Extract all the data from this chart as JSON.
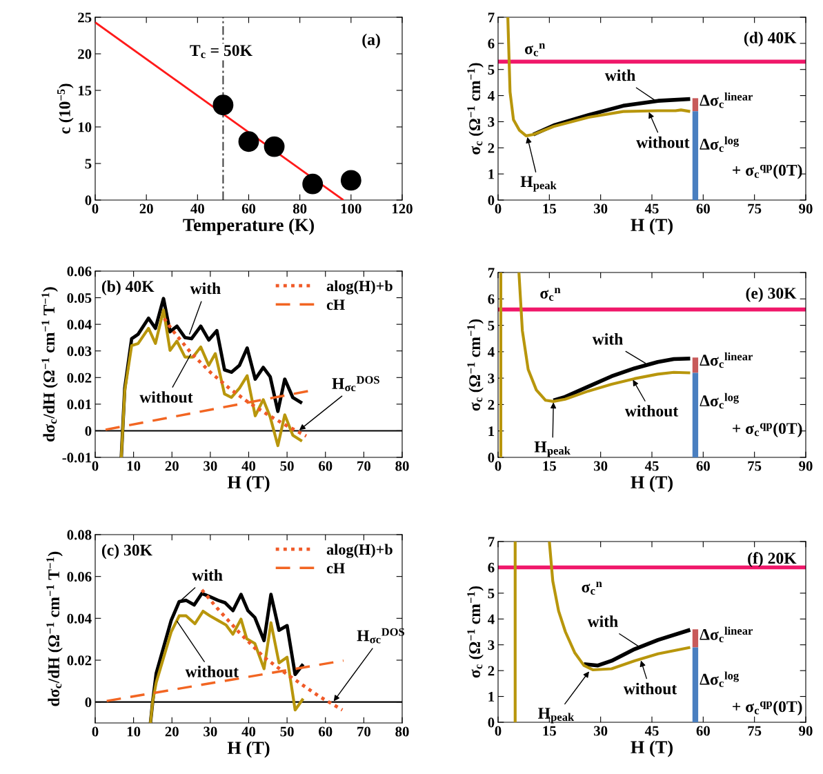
{
  "chart_data": [
    {
      "type": "line",
      "xlabel": "Temperature (K)",
      "ylabel": "c (10$^{−5}$)",
      "xlim": [
        0,
        120
      ],
      "ylim": [
        0,
        25
      ],
      "xticks": [
        0,
        20,
        40,
        60,
        80,
        100,
        120
      ],
      "yticks": [
        0,
        5,
        10,
        15,
        20,
        25
      ],
      "series": [
        {
          "color": "#ff1a1a",
          "x": [
            0,
            97
          ],
          "values": [
            24.3,
            0
          ]
        },
        {
          "type": "scatter",
          "color": "#000000",
          "marker": "circle",
          "x": [
            50,
            60,
            70,
            85,
            100
          ],
          "values": [
            13,
            8,
            7.3,
            2.2,
            2.7
          ]
        }
      ],
      "ref_lines": [
        {
          "axis": "x",
          "value": 50,
          "color": "#444444",
          "line_style": "dashdot"
        }
      ],
      "annotations": [
        "(a)",
        "T$_{c}$ = 50K"
      ]
    },
    {
      "type": "line",
      "xlabel": "H (T)",
      "ylabel": "dσ$_{c}$/dH (Ω$^{−1}$ cm$^{−1}$ T$^{−1}$)",
      "xlim": [
        0,
        80
      ],
      "ylim": [
        -0.01,
        0.06
      ],
      "xticks": [
        0,
        10,
        20,
        30,
        40,
        50,
        60,
        70,
        80
      ],
      "yticks": [
        -0.01,
        0,
        0.01,
        0.02,
        0.03,
        0.04,
        0.05,
        0.06
      ],
      "legend": "top right",
      "series": [
        {
          "color": "#000000",
          "x": [
            6.8,
            7.7,
            9.5,
            11.2,
            13.9,
            15.7,
            17.8,
            19.5,
            21.3,
            23.4,
            25.1,
            27.5,
            29.6,
            31.7,
            33.7,
            35.5,
            37.6,
            39.6,
            41.7,
            43.8,
            45.6,
            47.6,
            49.4,
            51.5,
            53.9
          ],
          "values": [
            -0.01,
            0.016,
            0.0346,
            0.0363,
            0.0423,
            0.0385,
            0.0497,
            0.0372,
            0.0393,
            0.035,
            0.0346,
            0.0393,
            0.0341,
            0.0376,
            0.0229,
            0.022,
            0.0246,
            0.0311,
            0.0194,
            0.0238,
            0.0203,
            0.0073,
            0.0194,
            0.0125,
            0.0104
          ]
        },
        {
          "color": "#b8960c",
          "x": [
            6.8,
            7.7,
            9.5,
            11.2,
            13.9,
            15.7,
            17.8,
            19.5,
            21.3,
            23.4,
            25.5,
            27.5,
            29.6,
            31.3,
            33.7,
            35.5,
            37.6,
            39.6,
            41.7,
            43.8,
            45.6,
            47.6,
            49.4,
            51.5,
            53.9
          ],
          "values": [
            -0.01,
            0.015,
            0.032,
            0.0328,
            0.0385,
            0.0328,
            0.0454,
            0.0302,
            0.0337,
            0.0277,
            0.0277,
            0.0315,
            0.0246,
            0.029,
            0.0138,
            0.0125,
            0.016,
            0.0207,
            0.0056,
            0.0117,
            0.0052,
            -0.0056,
            0.006,
            -0.0017,
            -0.0039
          ]
        },
        {
          "name": "alog(H)+b",
          "color": "#f05a28",
          "line_style": "dotted",
          "x": [
            18,
            20,
            25,
            30,
            35,
            40,
            45,
            50,
            55
          ],
          "values": [
            0.0422,
            0.038,
            0.0292,
            0.022,
            0.0159,
            0.0106,
            0.006,
            0.0018,
            -0.002
          ]
        },
        {
          "name": "cH",
          "color": "#f26522",
          "line_style": "dashed",
          "x": [
            2.7,
            56.2
          ],
          "values": [
            0.0004,
            0.0151
          ]
        }
      ],
      "ref_lines": [
        {
          "axis": "y",
          "value": 0,
          "color": "#000000"
        }
      ],
      "annotations": [
        "(b) 40K",
        {
          "text": "with",
          "x": 24.5,
          "y": 0.036
        },
        {
          "text": "without",
          "x": 25,
          "y": 0.029
        },
        {
          "text": "H$_{σc}$$^{DOS}$",
          "x": 53,
          "y": 0
        }
      ]
    },
    {
      "type": "line",
      "xlabel": "H (T)",
      "ylabel": "dσ$_{c}$/dH (Ω$^{−1}$ cm$^{−1}$ T$^{−1}$)",
      "xlim": [
        0,
        80
      ],
      "ylim": [
        -0.01,
        0.08
      ],
      "xticks": [
        0,
        10,
        20,
        30,
        40,
        50,
        60,
        70,
        80
      ],
      "yticks": [
        0,
        0.02,
        0.04,
        0.06,
        0.08
      ],
      "legend": "top right",
      "series": [
        {
          "color": "#000000",
          "x": [
            14.4,
            15,
            15.9,
            19.8,
            21.9,
            23.7,
            25.8,
            27.8,
            29.9,
            32,
            33.8,
            35.9,
            38,
            39.8,
            41.6,
            44,
            45.8,
            47.9,
            50,
            52.1,
            54.2
          ],
          "values": [
            -0.01,
            0.0005,
            0.0137,
            0.039,
            0.048,
            0.0486,
            0.0464,
            0.0519,
            0.0503,
            0.0486,
            0.0475,
            0.0437,
            0.0514,
            0.0437,
            0.0404,
            0.0294,
            0.0514,
            0.0343,
            0.0365,
            0.0132,
            0.0181
          ]
        },
        {
          "color": "#b8960c",
          "x": [
            14.4,
            15,
            15.9,
            19.8,
            21.9,
            23.7,
            26,
            28.1,
            29.9,
            32,
            34.1,
            35.9,
            38,
            39.5,
            41.6,
            44,
            45.8,
            47.9,
            50,
            52.1,
            54.2
          ],
          "values": [
            -0.01,
            0.0005,
            0.0093,
            0.0335,
            0.0412,
            0.0412,
            0.0374,
            0.0434,
            0.0412,
            0.039,
            0.0368,
            0.0324,
            0.0396,
            0.0302,
            0.028,
            0.0159,
            0.0379,
            0.0187,
            0.0214,
            -0.0038,
            0.0016
          ]
        },
        {
          "name": "alog(H)+b",
          "color": "#f05a28",
          "line_style": "dotted",
          "x": [
            27.8,
            32,
            37.4,
            44,
            50,
            58.4,
            64.4
          ],
          "values": [
            0.0536,
            0.0444,
            0.0335,
            0.0214,
            0.0132,
            0.0027,
            -0.0038
          ]
        },
        {
          "name": "cH",
          "color": "#f26522",
          "line_style": "dashed",
          "x": [
            3,
            64.7
          ],
          "values": [
            0.0005,
            0.0198
          ]
        }
      ],
      "ref_lines": [
        {
          "axis": "y",
          "value": 0,
          "color": "#000000"
        }
      ],
      "annotations": [
        "(c) 30K",
        {
          "text": "with",
          "x": 22,
          "y": 0.048
        },
        {
          "text": "without",
          "x": 21.2,
          "y": 0.039
        },
        {
          "text": "H$_{σc}$$^{DOS}$",
          "x": 62,
          "y": 0
        }
      ]
    },
    {
      "type": "line",
      "xlabel": "H (T)",
      "ylabel": "σ$_{c}$ (Ω$^{−1}$ cm$^{−1}$)",
      "xlim": [
        0,
        90
      ],
      "ylim": [
        0,
        7
      ],
      "xticks": [
        0,
        15,
        30,
        45,
        60,
        75,
        90
      ],
      "yticks": [
        0,
        1,
        2,
        3,
        4,
        5,
        6,
        7
      ],
      "series": [
        {
          "color": "#000000",
          "x": [
            10.3,
            16.3,
            26.5,
            36.6,
            46.8,
            56.2
          ],
          "values": [
            2.51,
            2.86,
            3.26,
            3.61,
            3.8,
            3.87
          ]
        },
        {
          "color": "#b8960c",
          "x": [
            2.85,
            3.5,
            4.5,
            6.2,
            8.2,
            10.3,
            16.3,
            26.5,
            36.6,
            46.8,
            51.9,
            53.5,
            56.2
          ],
          "values": [
            7,
            4.14,
            3.08,
            2.68,
            2.46,
            2.51,
            2.82,
            3.17,
            3.39,
            3.42,
            3.42,
            3.45,
            3.39
          ]
        },
        {
          "color": "#c85a5a",
          "x": [
            57.7,
            57.7
          ],
          "values": [
            3.4,
            3.9
          ]
        },
        {
          "color": "#4a7fc0",
          "x": [
            57.7,
            57.7
          ],
          "values": [
            0,
            3.4
          ]
        }
      ],
      "ref_lines": [
        {
          "axis": "y",
          "value": 5.3,
          "color": "#f0186a"
        }
      ],
      "annotations": [
        "(d) 40K",
        "σ$_{c}$$^{n}$",
        {
          "text": "with",
          "x": 46.1,
          "y": 3.8
        },
        {
          "text": "without",
          "x": 44,
          "y": 3.4
        },
        {
          "text": "H$_{peak}$",
          "x": 8.5,
          "y": 2.45
        },
        "Δσ$_{c}$$^{linear}$",
        "Δσ$_{c}$$^{log}$",
        "+ σ$_{c}$$^{qp}$(0T)"
      ]
    },
    {
      "type": "line",
      "xlabel": "H (T)",
      "ylabel": "σ$_{c}$ (Ω$^{−1}$ cm$^{−1}$)",
      "xlim": [
        0,
        90
      ],
      "ylim": [
        0,
        7
      ],
      "xticks": [
        0,
        15,
        30,
        45,
        60,
        75,
        90
      ],
      "yticks": [
        0,
        1,
        2,
        3,
        4,
        5,
        6,
        7
      ],
      "series": [
        {
          "color": "#000000",
          "x": [
            16.2,
            19.6,
            26.4,
            33.2,
            39.9,
            46.7,
            51.4,
            56.2
          ],
          "values": [
            2.16,
            2.29,
            2.68,
            3.07,
            3.37,
            3.61,
            3.72,
            3.74
          ]
        },
        {
          "color": "#b8960c",
          "x": [
            0.8,
            0.8,
            3,
            6.1,
            7.1,
            8.8,
            11.2,
            13.9,
            16.2,
            19.6,
            26.4,
            33.2,
            39.9,
            46.7,
            51.4,
            56.2
          ],
          "values": [
            0,
            7,
            null,
            7,
            4.8,
            3.33,
            2.55,
            2.16,
            2.12,
            2.2,
            2.51,
            2.77,
            2.98,
            3.15,
            3.22,
            3.2
          ]
        },
        {
          "color": "#c85a5a",
          "x": [
            57.7,
            57.7
          ],
          "values": [
            3.2,
            3.78
          ]
        },
        {
          "color": "#4a7fc0",
          "x": [
            57.7,
            57.7
          ],
          "values": [
            0,
            3.2
          ]
        }
      ],
      "ref_lines": [
        {
          "axis": "y",
          "value": 5.6,
          "color": "#f0186a"
        }
      ],
      "annotations": [
        "(e) 30K",
        "σ$_{c}$$^{n}$",
        {
          "text": "with",
          "x": 43.3,
          "y": 3.55
        },
        {
          "text": "without",
          "x": 39.3,
          "y": 2.97
        },
        {
          "text": "H$_{peak}$",
          "x": 16.2,
          "y": 2.12
        },
        "Δσ$_{c}$$^{linear}$",
        "Δσ$_{c}$$^{log}$",
        "+ σ$_{c}$$^{qp}$(0T)"
      ]
    },
    {
      "type": "line",
      "xlabel": "H (T)",
      "ylabel": "σ$_{c}$ (Ω$^{−1}$ cm$^{−1}$)",
      "xlim": [
        0,
        90
      ],
      "ylim": [
        0,
        7
      ],
      "xticks": [
        0,
        15,
        30,
        45,
        60,
        75,
        90
      ],
      "yticks": [
        0,
        1,
        2,
        3,
        4,
        5,
        6,
        7
      ],
      "series": [
        {
          "color": "#000000",
          "x": [
            25.1,
            29.2,
            33.2,
            39.9,
            46.8,
            56.2
          ],
          "values": [
            2.25,
            2.2,
            2.38,
            2.83,
            3.19,
            3.58
          ]
        },
        {
          "color": "#b8960c",
          "x": [
            5,
            5,
            10,
            15,
            16,
            17.7,
            19.7,
            22.4,
            25.1,
            27.8,
            33.2,
            39.9,
            46.8,
            56.2
          ],
          "values": [
            0,
            7,
            null,
            7,
            5.47,
            4.31,
            3.5,
            2.7,
            2.2,
            2.03,
            2.07,
            2.38,
            2.65,
            2.9
          ]
        },
        {
          "color": "#c85a5a",
          "x": [
            57.7,
            57.7
          ],
          "values": [
            2.9,
            3.6
          ]
        },
        {
          "color": "#4a7fc0",
          "x": [
            57.7,
            57.7
          ],
          "values": [
            0,
            2.9
          ]
        }
      ],
      "ref_lines": [
        {
          "axis": "y",
          "value": 6,
          "color": "#f0186a"
        }
      ],
      "annotations": [
        "(f) 20K",
        "σ$_{c}$$^{n}$",
        {
          "text": "with",
          "x": 41.3,
          "y": 2.92
        },
        {
          "text": "without",
          "x": 41.7,
          "y": 2.43
        },
        {
          "text": "H$_{peak}$",
          "x": 26.8,
          "y": 2.0
        },
        "Δσ$_{c}$$^{linear}$",
        "Δσ$_{c}$$^{log}$",
        "+ σ$_{c}$$^{qp}$(0T)"
      ]
    }
  ]
}
